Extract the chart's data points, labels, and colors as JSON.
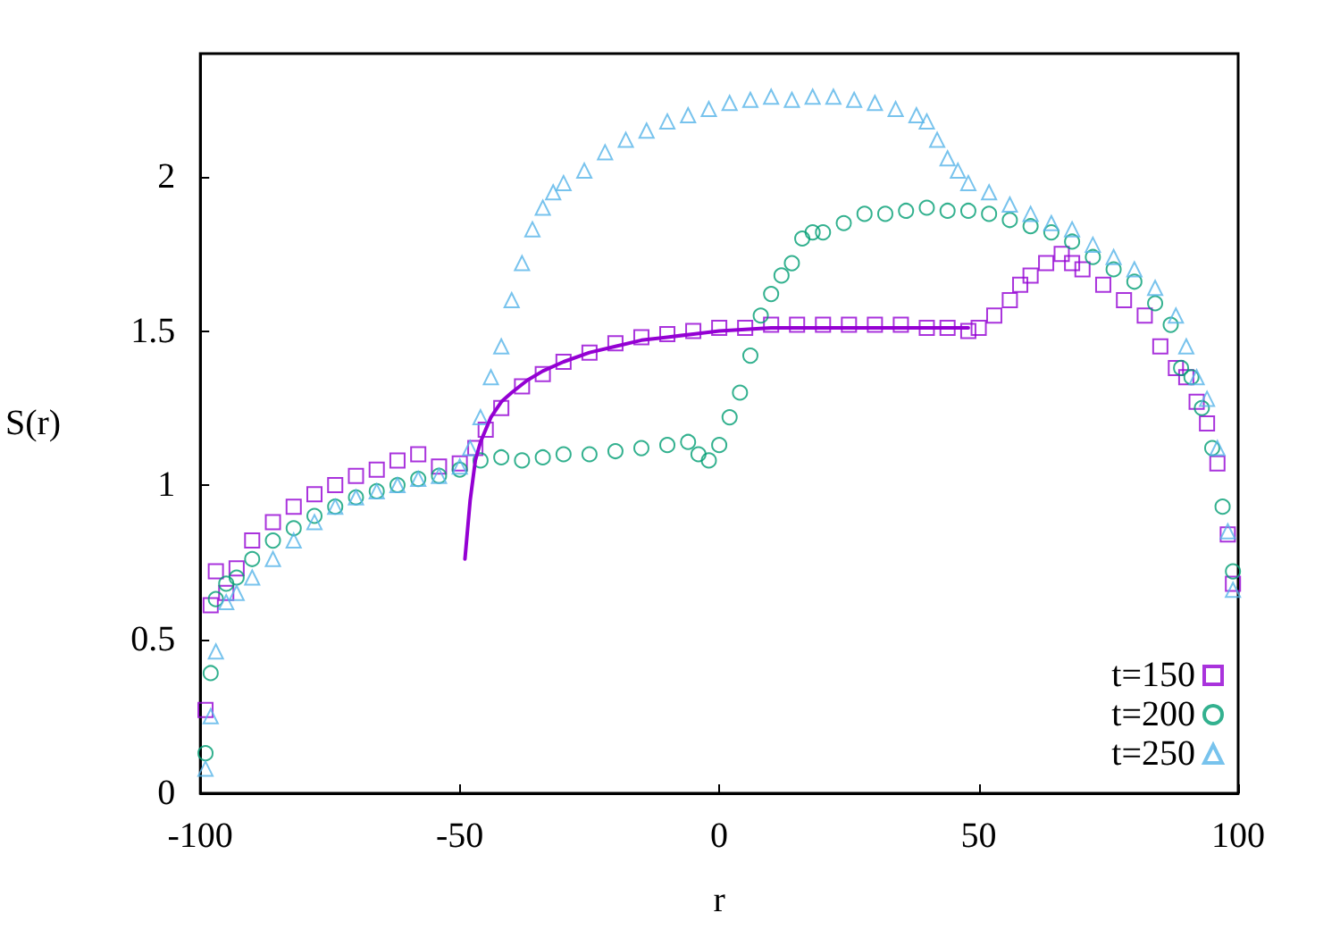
{
  "chart_data": {
    "type": "scatter",
    "xlabel": "r",
    "ylabel": "S(r)",
    "xlim": [
      -100,
      100
    ],
    "xticks": [
      -100,
      -50,
      0,
      50,
      100
    ],
    "ylim": [
      0,
      2.4
    ],
    "yticks": [
      0,
      0.5,
      1,
      1.5,
      2
    ],
    "grid": false,
    "legend": "bottom right",
    "series": [
      {
        "name": "t=150",
        "color": "#9400d3",
        "marker": "square",
        "x": [
          -99,
          -98,
          -97,
          -95,
          -93,
          -90,
          -86,
          -82,
          -78,
          -74,
          -70,
          -66,
          -62,
          -58,
          -54,
          -50,
          -47,
          -45,
          -42,
          -38,
          -34,
          -30,
          -25,
          -20,
          -15,
          -10,
          -5,
          0,
          5,
          10,
          15,
          20,
          25,
          30,
          35,
          40,
          44,
          48,
          50,
          53,
          56,
          58,
          60,
          63,
          66,
          68,
          70,
          74,
          78,
          82,
          85,
          88,
          90,
          92,
          94,
          96,
          98,
          99
        ],
        "values": [
          0.27,
          0.61,
          0.72,
          0.65,
          0.73,
          0.82,
          0.88,
          0.93,
          0.97,
          1.0,
          1.03,
          1.05,
          1.08,
          1.1,
          1.06,
          1.07,
          1.12,
          1.18,
          1.25,
          1.32,
          1.36,
          1.4,
          1.43,
          1.46,
          1.48,
          1.49,
          1.5,
          1.51,
          1.51,
          1.52,
          1.52,
          1.52,
          1.52,
          1.52,
          1.52,
          1.51,
          1.51,
          1.5,
          1.51,
          1.55,
          1.6,
          1.65,
          1.68,
          1.72,
          1.75,
          1.72,
          1.7,
          1.65,
          1.6,
          1.55,
          1.45,
          1.38,
          1.35,
          1.27,
          1.2,
          1.07,
          0.84,
          0.68
        ]
      },
      {
        "name": "t=200",
        "color": "#009e73",
        "marker": "circle",
        "x": [
          -99,
          -98,
          -97,
          -95,
          -93,
          -90,
          -86,
          -82,
          -78,
          -74,
          -70,
          -66,
          -62,
          -58,
          -54,
          -50,
          -46,
          -42,
          -38,
          -34,
          -30,
          -25,
          -20,
          -15,
          -10,
          -6,
          -4,
          -2,
          0,
          2,
          4,
          6,
          8,
          10,
          12,
          14,
          16,
          18,
          20,
          24,
          28,
          32,
          36,
          40,
          44,
          48,
          52,
          56,
          60,
          64,
          68,
          72,
          76,
          80,
          84,
          87,
          89,
          91,
          93,
          95,
          97,
          99
        ],
        "values": [
          0.13,
          0.39,
          0.63,
          0.68,
          0.7,
          0.76,
          0.82,
          0.86,
          0.9,
          0.93,
          0.96,
          0.98,
          1.0,
          1.02,
          1.03,
          1.05,
          1.08,
          1.09,
          1.08,
          1.09,
          1.1,
          1.1,
          1.11,
          1.12,
          1.13,
          1.14,
          1.1,
          1.08,
          1.13,
          1.22,
          1.3,
          1.42,
          1.55,
          1.62,
          1.68,
          1.72,
          1.8,
          1.82,
          1.82,
          1.85,
          1.88,
          1.88,
          1.89,
          1.9,
          1.89,
          1.89,
          1.88,
          1.86,
          1.84,
          1.82,
          1.79,
          1.74,
          1.7,
          1.66,
          1.59,
          1.52,
          1.38,
          1.35,
          1.25,
          1.12,
          0.93,
          0.72
        ]
      },
      {
        "name": "t=250",
        "color": "#56b4e9",
        "marker": "triangle",
        "x": [
          -99,
          -98,
          -97,
          -95,
          -93,
          -90,
          -86,
          -82,
          -78,
          -74,
          -70,
          -66,
          -62,
          -58,
          -54,
          -50,
          -48,
          -46,
          -44,
          -42,
          -40,
          -38,
          -36,
          -34,
          -32,
          -30,
          -26,
          -22,
          -18,
          -14,
          -10,
          -6,
          -2,
          2,
          6,
          10,
          14,
          18,
          22,
          26,
          30,
          34,
          38,
          40,
          42,
          44,
          46,
          48,
          52,
          56,
          60,
          64,
          68,
          72,
          76,
          80,
          84,
          88,
          90,
          92,
          94,
          96,
          98,
          99
        ],
        "values": [
          0.08,
          0.25,
          0.46,
          0.62,
          0.65,
          0.7,
          0.76,
          0.82,
          0.88,
          0.93,
          0.96,
          0.98,
          1.0,
          1.02,
          1.03,
          1.06,
          1.12,
          1.22,
          1.35,
          1.45,
          1.6,
          1.72,
          1.83,
          1.9,
          1.95,
          1.98,
          2.02,
          2.08,
          2.12,
          2.15,
          2.18,
          2.2,
          2.22,
          2.24,
          2.25,
          2.26,
          2.25,
          2.26,
          2.26,
          2.25,
          2.24,
          2.22,
          2.2,
          2.18,
          2.12,
          2.06,
          2.02,
          1.98,
          1.95,
          1.91,
          1.88,
          1.85,
          1.83,
          1.78,
          1.74,
          1.7,
          1.64,
          1.55,
          1.45,
          1.35,
          1.28,
          1.12,
          0.85,
          0.66
        ]
      },
      {
        "type": "line",
        "color": "#9400d3",
        "marker": "none",
        "line_style": "solid",
        "x": [
          -49,
          -48,
          -47,
          -46,
          -45,
          -44,
          -42,
          -40,
          -37,
          -34,
          -30,
          -25,
          -20,
          -15,
          -10,
          -5,
          0,
          10,
          20,
          30,
          40,
          48
        ],
        "values": [
          0.76,
          0.95,
          1.08,
          1.14,
          1.18,
          1.22,
          1.27,
          1.3,
          1.34,
          1.37,
          1.4,
          1.43,
          1.45,
          1.47,
          1.48,
          1.49,
          1.5,
          1.51,
          1.51,
          1.51,
          1.51,
          1.51
        ]
      }
    ]
  }
}
